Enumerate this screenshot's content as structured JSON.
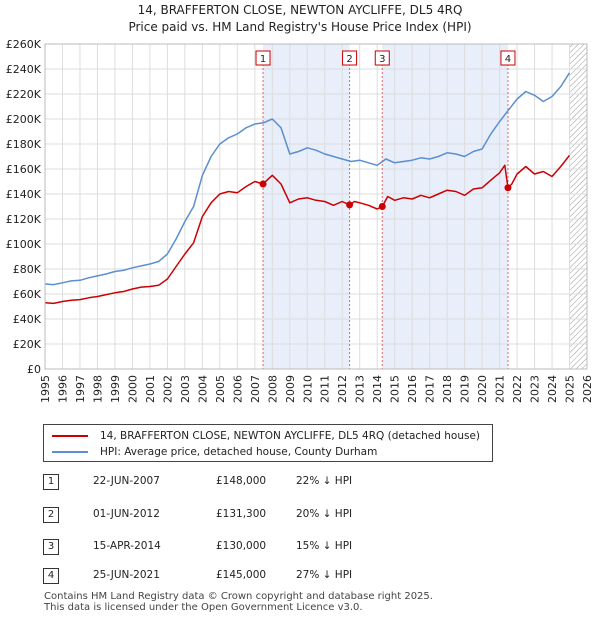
{
  "chart_data": {
    "type": "line",
    "title": "14, BRAFFERTON CLOSE, NEWTON AYCLIFFE, DL5 4RQ",
    "subtitle": "Price paid vs. HM Land Registry's House Price Index (HPI)",
    "xlim": [
      1995,
      2026
    ],
    "ylim": [
      0,
      260000
    ],
    "x_ticks": [
      1995,
      1996,
      1997,
      1998,
      1999,
      2000,
      2001,
      2002,
      2003,
      2004,
      2005,
      2006,
      2007,
      2008,
      2009,
      2010,
      2011,
      2012,
      2013,
      2014,
      2015,
      2016,
      2017,
      2018,
      2019,
      2020,
      2021,
      2022,
      2023,
      2024,
      2025,
      2026
    ],
    "y_ticks": [
      0,
      20000,
      40000,
      60000,
      80000,
      100000,
      120000,
      140000,
      160000,
      180000,
      200000,
      220000,
      240000,
      260000
    ],
    "y_tick_labels": [
      "£0",
      "£20K",
      "£40K",
      "£60K",
      "£80K",
      "£100K",
      "£120K",
      "£140K",
      "£160K",
      "£180K",
      "£200K",
      "£220K",
      "£240K",
      "£260K"
    ],
    "grid": true,
    "hatch_from": 2025.0,
    "shaded_ranges": [
      [
        2007.47,
        2012.42
      ],
      [
        2014.29,
        2021.48
      ]
    ],
    "colors": {
      "property": "#cc0000",
      "hpi": "#5b8fd1",
      "shade": "#e8eefa",
      "marker": "#cc0000"
    },
    "series": [
      {
        "name": "14, BRAFFERTON CLOSE, NEWTON AYCLIFFE, DL5 4RQ (detached house)",
        "color": "#cc0000",
        "x": [
          1995,
          1995.5,
          1996,
          1996.5,
          1997,
          1997.5,
          1998,
          1998.5,
          1999,
          1999.5,
          2000,
          2000.5,
          2001,
          2001.5,
          2002,
          2002.5,
          2003,
          2003.5,
          2004,
          2004.5,
          2005,
          2005.5,
          2006,
          2006.5,
          2007,
          2007.47,
          2007.7,
          2008,
          2008.5,
          2009,
          2009.5,
          2010,
          2010.5,
          2011,
          2011.5,
          2012,
          2012.42,
          2012.7,
          2013,
          2013.5,
          2014,
          2014.29,
          2014.6,
          2015,
          2015.5,
          2016,
          2016.5,
          2017,
          2017.5,
          2018,
          2018.5,
          2019,
          2019.5,
          2020,
          2020.5,
          2021,
          2021.3,
          2021.48,
          2021.7,
          2022,
          2022.5,
          2023,
          2023.5,
          2024,
          2024.5,
          2025
        ],
        "y": [
          53000,
          52500,
          54000,
          55000,
          55500,
          57000,
          58000,
          59500,
          61000,
          62000,
          64000,
          65500,
          66000,
          67000,
          72000,
          82000,
          92000,
          101000,
          122000,
          133000,
          140000,
          142000,
          141000,
          146000,
          150000,
          148000,
          151000,
          155000,
          148000,
          133000,
          136000,
          137000,
          135000,
          134000,
          131000,
          134000,
          131300,
          134000,
          133000,
          131000,
          128000,
          130000,
          138000,
          135000,
          137000,
          136000,
          139000,
          137000,
          140000,
          143000,
          142000,
          139000,
          144000,
          145000,
          151000,
          157000,
          163000,
          145000,
          148000,
          156000,
          162000,
          156000,
          158000,
          154000,
          162000,
          171000
        ]
      },
      {
        "name": "HPI: Average price, detached house, County Durham",
        "color": "#5b8fd1",
        "x": [
          1995,
          1995.5,
          1996,
          1996.5,
          1997,
          1997.5,
          1998,
          1998.5,
          1999,
          1999.5,
          2000,
          2000.5,
          2001,
          2001.5,
          2002,
          2002.5,
          2003,
          2003.5,
          2004,
          2004.5,
          2005,
          2005.5,
          2006,
          2006.5,
          2007,
          2007.5,
          2008,
          2008.5,
          2009,
          2009.5,
          2010,
          2010.5,
          2011,
          2011.5,
          2012,
          2012.5,
          2013,
          2013.5,
          2014,
          2014.5,
          2015,
          2015.5,
          2016,
          2016.5,
          2017,
          2017.5,
          2018,
          2018.5,
          2019,
          2019.5,
          2020,
          2020.5,
          2021,
          2021.5,
          2022,
          2022.5,
          2023,
          2023.5,
          2024,
          2024.5,
          2025
        ],
        "y": [
          68000,
          67500,
          69000,
          70500,
          71000,
          73000,
          74500,
          76000,
          78000,
          79000,
          81000,
          82500,
          84000,
          86000,
          92000,
          104000,
          118000,
          130000,
          155000,
          170000,
          180000,
          185000,
          188000,
          193000,
          196000,
          197000,
          200000,
          193000,
          172000,
          174000,
          177000,
          175000,
          172000,
          170000,
          168000,
          166000,
          167000,
          165000,
          163000,
          168000,
          165000,
          166000,
          167000,
          169000,
          168000,
          170000,
          173000,
          172000,
          170000,
          174000,
          176000,
          188000,
          198000,
          207000,
          216000,
          222000,
          219000,
          214000,
          218000,
          226000,
          237000
        ]
      }
    ],
    "sale_markers": [
      {
        "label": "1",
        "x": 2007.47,
        "y": 148000
      },
      {
        "label": "2",
        "x": 2012.42,
        "y": 131300
      },
      {
        "label": "3",
        "x": 2014.29,
        "y": 130000
      },
      {
        "label": "4",
        "x": 2021.48,
        "y": 145000
      }
    ]
  },
  "legend": {
    "property_label": "14, BRAFFERTON CLOSE, NEWTON AYCLIFFE, DL5 4RQ (detached house)",
    "hpi_label": "HPI: Average price, detached house, County Durham"
  },
  "sales": [
    {
      "num": "1",
      "date": "22-JUN-2007",
      "price": "£148,000",
      "pct": "22% ↓ HPI"
    },
    {
      "num": "2",
      "date": "01-JUN-2012",
      "price": "£131,300",
      "pct": "20% ↓ HPI"
    },
    {
      "num": "3",
      "date": "15-APR-2014",
      "price": "£130,000",
      "pct": "15% ↓ HPI"
    },
    {
      "num": "4",
      "date": "25-JUN-2021",
      "price": "£145,000",
      "pct": "27% ↓ HPI"
    }
  ],
  "footer": {
    "line1": "Contains HM Land Registry data © Crown copyright and database right 2025.",
    "line2": "This data is licensed under the Open Government Licence v3.0."
  }
}
